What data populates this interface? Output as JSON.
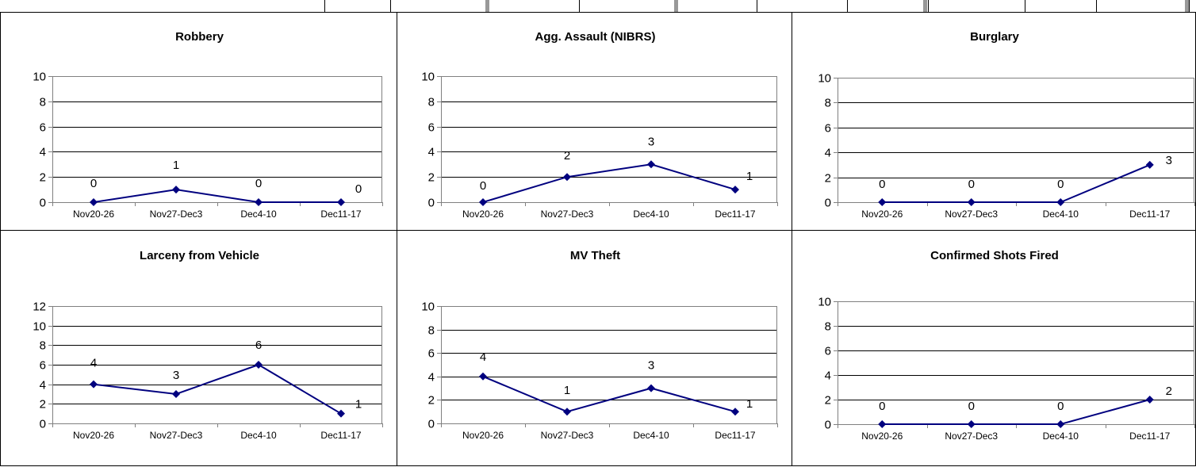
{
  "colors": {
    "series": "#00007F",
    "gridline": "#000000",
    "axis": "#808080",
    "background": "#FFFFFF"
  },
  "chart_data": [
    {
      "type": "line",
      "title": "Robbery",
      "categories": [
        "Nov20-26",
        "Nov27-Dec3",
        "Dec4-10",
        "Dec11-17"
      ],
      "series": [
        {
          "values": [
            0,
            1,
            0,
            0
          ]
        }
      ],
      "data_labels": [
        "0",
        "1",
        "0",
        "0"
      ],
      "yticks": [
        "0",
        "2",
        "4",
        "6",
        "8",
        "10"
      ],
      "ylim": [
        0,
        10
      ],
      "grid": true,
      "marker": "diamond"
    },
    {
      "type": "line",
      "title": "Agg. Assault (NIBRS)",
      "categories": [
        "Nov20-26",
        "Nov27-Dec3",
        "Dec4-10",
        "Dec11-17"
      ],
      "series": [
        {
          "values": [
            0,
            2,
            3,
            1
          ]
        }
      ],
      "data_labels": [
        "0",
        "2",
        "3",
        "1"
      ],
      "yticks": [
        "0",
        "2",
        "4",
        "6",
        "8",
        "10"
      ],
      "ylim": [
        0,
        10
      ],
      "grid": true,
      "marker": "diamond"
    },
    {
      "type": "line",
      "title": "Burglary",
      "categories": [
        "Nov20-26",
        "Nov27-Dec3",
        "Dec4-10",
        "Dec11-17"
      ],
      "series": [
        {
          "values": [
            0,
            0,
            0,
            3
          ]
        }
      ],
      "data_labels": [
        "0",
        "0",
        "0",
        "3"
      ],
      "yticks": [
        "0",
        "2",
        "4",
        "6",
        "8",
        "10"
      ],
      "ylim": [
        0,
        10
      ],
      "grid": true,
      "marker": "diamond"
    },
    {
      "type": "line",
      "title": "Larceny from Vehicle",
      "categories": [
        "Nov20-26",
        "Nov27-Dec3",
        "Dec4-10",
        "Dec11-17"
      ],
      "series": [
        {
          "values": [
            4,
            3,
            6,
            1
          ]
        }
      ],
      "data_labels": [
        "4",
        "3",
        "6",
        "1"
      ],
      "yticks": [
        "0",
        "2",
        "4",
        "6",
        "8",
        "10",
        "12"
      ],
      "ylim": [
        0,
        12
      ],
      "grid": true,
      "marker": "diamond"
    },
    {
      "type": "line",
      "title": "MV Theft",
      "categories": [
        "Nov20-26",
        "Nov27-Dec3",
        "Dec4-10",
        "Dec11-17"
      ],
      "series": [
        {
          "values": [
            4,
            1,
            3,
            1
          ]
        }
      ],
      "data_labels": [
        "4",
        "1",
        "3",
        "1"
      ],
      "yticks": [
        "0",
        "2",
        "4",
        "6",
        "8",
        "10"
      ],
      "ylim": [
        0,
        10
      ],
      "grid": true,
      "marker": "diamond"
    },
    {
      "type": "line",
      "title": "Confirmed Shots Fired",
      "categories": [
        "Nov20-26",
        "Nov27-Dec3",
        "Dec4-10",
        "Dec11-17"
      ],
      "series": [
        {
          "values": [
            0,
            0,
            0,
            2
          ]
        }
      ],
      "data_labels": [
        "0",
        "0",
        "0",
        "2"
      ],
      "yticks": [
        "0",
        "2",
        "4",
        "6",
        "8",
        "10"
      ],
      "ylim": [
        0,
        10
      ],
      "grid": true,
      "marker": "diamond"
    }
  ]
}
